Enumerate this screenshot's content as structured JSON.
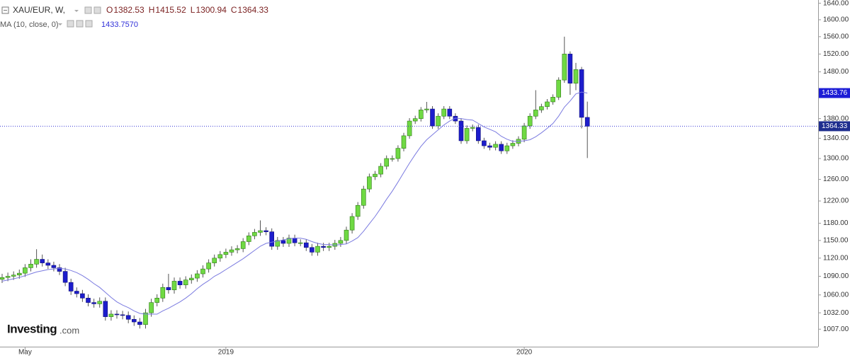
{
  "chart_data": {
    "type": "candlestick",
    "title": "XAU/EUR, W,",
    "ohlc_letters": [
      "O",
      "H",
      "L",
      "C"
    ],
    "log_scale": true,
    "ylim": [
      981,
      1648
    ],
    "yticks": [
      {
        "value": 1640,
        "label": "1640.00"
      },
      {
        "value": 1600,
        "label": "1600.00"
      },
      {
        "value": 1560,
        "label": "1560.00"
      },
      {
        "value": 1520,
        "label": "1520.00"
      },
      {
        "value": 1480,
        "label": "1480.00"
      },
      {
        "value": 1380,
        "label": "1380.00"
      },
      {
        "value": 1340,
        "label": "1340.00"
      },
      {
        "value": 1300,
        "label": "1300.00"
      },
      {
        "value": 1260,
        "label": "1260.00"
      },
      {
        "value": 1220,
        "label": "1220.00"
      },
      {
        "value": 1180,
        "label": "1180.00"
      },
      {
        "value": 1150,
        "label": "1150.00"
      },
      {
        "value": 1120,
        "label": "1120.00"
      },
      {
        "value": 1090,
        "label": "1090.00"
      },
      {
        "value": 1060,
        "label": "1060.00"
      },
      {
        "value": 1032,
        "label": "1032.00"
      },
      {
        "value": 1007,
        "label": "1007.00"
      }
    ],
    "categories": [
      null,
      null,
      null,
      null,
      "May",
      null,
      null,
      null,
      null,
      null,
      null,
      null,
      null,
      null,
      null,
      null,
      null,
      null,
      null,
      null,
      null,
      null,
      null,
      null,
      null,
      null,
      null,
      null,
      null,
      null,
      null,
      null,
      null,
      null,
      null,
      null,
      null,
      null,
      null,
      "2019",
      null,
      null,
      null,
      null,
      null,
      null,
      null,
      null,
      null,
      null,
      null,
      null,
      null,
      null,
      null,
      null,
      null,
      null,
      null,
      null,
      null,
      null,
      null,
      null,
      null,
      null,
      null,
      null,
      null,
      null,
      null,
      null,
      null,
      null,
      null,
      null,
      null,
      null,
      null,
      null,
      null,
      null,
      null,
      null,
      null,
      null,
      null,
      null,
      null,
      null,
      null,
      "2020",
      null,
      null,
      null,
      null,
      null,
      null,
      null,
      null,
      null,
      null,
      null
    ],
    "up_color": "#6fd943",
    "down_color": "#1d1dcc",
    "candles": {
      "open": [
        1085,
        1088,
        1090,
        1092,
        1095,
        1104,
        1110,
        1118,
        1112,
        1108,
        1104,
        1098,
        1080,
        1066,
        1062,
        1055,
        1048,
        1046,
        1050,
        1026,
        1030,
        1029,
        1028,
        1022,
        1018,
        1014,
        1032,
        1048,
        1055,
        1072,
        1068,
        1082,
        1076,
        1084,
        1087,
        1094,
        1102,
        1112,
        1120,
        1126,
        1130,
        1134,
        1136,
        1148,
        1158,
        1164,
        1167,
        1165,
        1140,
        1150,
        1145,
        1154,
        1146,
        1146,
        1138,
        1130,
        1140,
        1138,
        1140,
        1145,
        1150,
        1168,
        1192,
        1212,
        1242,
        1265,
        1270,
        1285,
        1300,
        1300,
        1320,
        1345,
        1375,
        1380,
        1398,
        1400,
        1365,
        1385,
        1400,
        1385,
        1375,
        1335,
        1360,
        1362,
        1335,
        1325,
        1322,
        1328,
        1315,
        1325,
        1330,
        1338,
        1365,
        1385,
        1398,
        1405,
        1415,
        1425,
        1462,
        1520,
        1455,
        1485,
        1382.53
      ],
      "high": [
        1094,
        1096,
        1098,
        1101,
        1110,
        1118,
        1135,
        1126,
        1118,
        1114,
        1110,
        1104,
        1086,
        1072,
        1068,
        1061,
        1054,
        1056,
        1056,
        1036,
        1036,
        1035,
        1034,
        1028,
        1024,
        1038,
        1054,
        1061,
        1078,
        1094,
        1088,
        1088,
        1090,
        1093,
        1100,
        1108,
        1118,
        1126,
        1132,
        1136,
        1140,
        1142,
        1154,
        1164,
        1170,
        1185,
        1173,
        1171,
        1156,
        1156,
        1160,
        1160,
        1152,
        1152,
        1144,
        1146,
        1146,
        1146,
        1151,
        1156,
        1174,
        1198,
        1218,
        1248,
        1271,
        1276,
        1291,
        1306,
        1306,
        1326,
        1351,
        1381,
        1386,
        1404,
        1415,
        1406,
        1391,
        1406,
        1406,
        1391,
        1381,
        1366,
        1368,
        1368,
        1341,
        1331,
        1334,
        1334,
        1331,
        1336,
        1344,
        1371,
        1391,
        1440,
        1411,
        1421,
        1431,
        1468,
        1560,
        1526,
        1500,
        1491,
        1415.52
      ],
      "low": [
        1079,
        1082,
        1084,
        1086,
        1089,
        1098,
        1104,
        1106,
        1102,
        1098,
        1092,
        1074,
        1060,
        1056,
        1049,
        1042,
        1040,
        1040,
        1020,
        1020,
        1023,
        1022,
        1016,
        1012,
        1008,
        1008,
        1026,
        1042,
        1049,
        1062,
        1062,
        1070,
        1070,
        1078,
        1081,
        1088,
        1096,
        1106,
        1114,
        1120,
        1124,
        1128,
        1130,
        1142,
        1152,
        1158,
        1159,
        1134,
        1134,
        1139,
        1139,
        1140,
        1140,
        1132,
        1124,
        1124,
        1132,
        1132,
        1134,
        1139,
        1144,
        1162,
        1186,
        1206,
        1236,
        1259,
        1264,
        1279,
        1294,
        1294,
        1314,
        1339,
        1369,
        1374,
        1392,
        1359,
        1359,
        1379,
        1379,
        1369,
        1329,
        1329,
        1354,
        1329,
        1319,
        1316,
        1316,
        1309,
        1309,
        1319,
        1324,
        1332,
        1359,
        1379,
        1392,
        1399,
        1409,
        1419,
        1456,
        1430,
        1440,
        1360,
        1300.94
      ],
      "close": [
        1088,
        1090,
        1092,
        1095,
        1104,
        1110,
        1118,
        1112,
        1108,
        1104,
        1098,
        1080,
        1066,
        1062,
        1055,
        1048,
        1046,
        1050,
        1026,
        1030,
        1029,
        1028,
        1022,
        1018,
        1014,
        1032,
        1048,
        1055,
        1072,
        1068,
        1082,
        1076,
        1084,
        1087,
        1094,
        1102,
        1112,
        1120,
        1126,
        1130,
        1134,
        1136,
        1148,
        1158,
        1164,
        1167,
        1165,
        1140,
        1150,
        1145,
        1154,
        1146,
        1146,
        1138,
        1130,
        1140,
        1138,
        1140,
        1145,
        1150,
        1168,
        1192,
        1212,
        1242,
        1265,
        1270,
        1285,
        1300,
        1300,
        1320,
        1345,
        1375,
        1380,
        1398,
        1400,
        1365,
        1385,
        1400,
        1385,
        1375,
        1335,
        1360,
        1362,
        1335,
        1325,
        1322,
        1328,
        1315,
        1325,
        1330,
        1338,
        1365,
        1385,
        1398,
        1405,
        1415,
        1425,
        1462,
        1520,
        1455,
        1485,
        1382.53,
        1364.33
      ]
    },
    "ma": {
      "name": "MA (10, close, 0)",
      "color": "#7b7be0",
      "values": [
        1082,
        1084,
        1086,
        1088,
        1091,
        1094,
        1097,
        1099,
        1101,
        1102,
        1103,
        1102,
        1099.5,
        1096,
        1091,
        1085,
        1078,
        1072,
        1064,
        1056,
        1049,
        1044,
        1040,
        1035,
        1031,
        1030,
        1030,
        1030,
        1035,
        1039,
        1044,
        1049,
        1055,
        1062,
        1070,
        1077,
        1083,
        1090,
        1095,
        1101,
        1107,
        1113,
        1119,
        1126,
        1133,
        1140,
        1145,
        1147,
        1149,
        1151,
        1153,
        1154,
        1154,
        1152,
        1148,
        1145,
        1143,
        1143,
        1142,
        1143,
        1144,
        1149,
        1155,
        1166,
        1179,
        1192,
        1207,
        1223,
        1238,
        1255,
        1273,
        1291,
        1308,
        1324,
        1337,
        1347,
        1357,
        1367,
        1375,
        1381,
        1380,
        1378,
        1377,
        1370,
        1363,
        1358,
        1353,
        1344,
        1338,
        1334,
        1334,
        1335,
        1337,
        1343,
        1351,
        1360,
        1370,
        1385,
        1404,
        1417,
        1432,
        1436,
        1433.757
      ],
      "legend_label": "1433.7570",
      "axis_label": "1433.76"
    },
    "logo": {
      "name": "Investing",
      "suffix": ".com"
    }
  }
}
